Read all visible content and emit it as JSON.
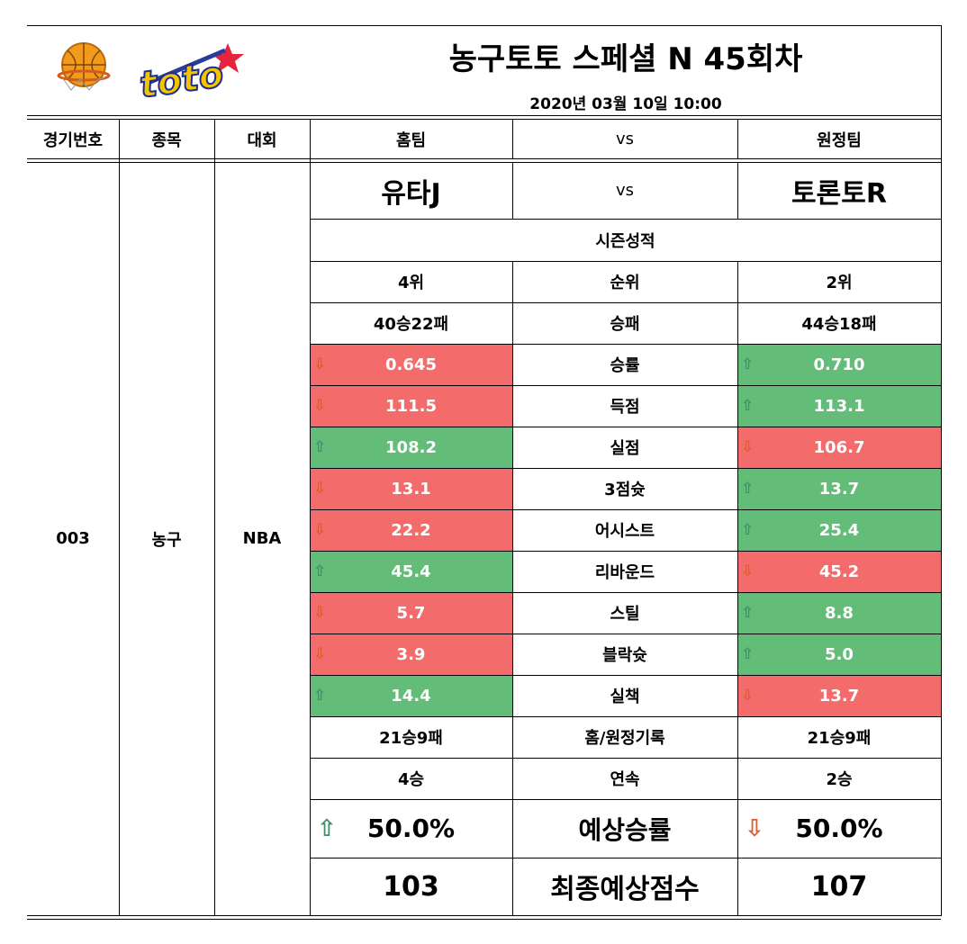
{
  "header": {
    "title": "농구토토 스페셜 N 45회차",
    "datetime": "2020년 03월 10일 10:00",
    "logo_text": "toto"
  },
  "columns": {
    "game_no": "경기번호",
    "sport": "종목",
    "league": "대회",
    "home": "홈팀",
    "vs": "vs",
    "away": "원정팀"
  },
  "game": {
    "number": "003",
    "sport": "농구",
    "league": "NBA",
    "home_team": "유타J",
    "vs": "vs",
    "away_team": "토론토R"
  },
  "season_label": "시즌성적",
  "rows_plain": [
    {
      "home": "4위",
      "label": "순위",
      "away": "2위"
    },
    {
      "home": "40승22패",
      "label": "승패",
      "away": "44승18패"
    }
  ],
  "stats": [
    {
      "home": "0.645",
      "home_dir": "down",
      "label": "승률",
      "away": "0.710",
      "away_dir": "up"
    },
    {
      "home": "111.5",
      "home_dir": "down",
      "label": "득점",
      "away": "113.1",
      "away_dir": "up"
    },
    {
      "home": "108.2",
      "home_dir": "up",
      "label": "실점",
      "away": "106.7",
      "away_dir": "down"
    },
    {
      "home": "13.1",
      "home_dir": "down",
      "label": "3점슛",
      "away": "13.7",
      "away_dir": "up"
    },
    {
      "home": "22.2",
      "home_dir": "down",
      "label": "어시스트",
      "away": "25.4",
      "away_dir": "up"
    },
    {
      "home": "45.4",
      "home_dir": "up",
      "label": "리바운드",
      "away": "45.2",
      "away_dir": "down"
    },
    {
      "home": "5.7",
      "home_dir": "down",
      "label": "스틸",
      "away": "8.8",
      "away_dir": "up"
    },
    {
      "home": "3.9",
      "home_dir": "down",
      "label": "블락슛",
      "away": "5.0",
      "away_dir": "up"
    },
    {
      "home": "14.4",
      "home_dir": "up",
      "label": "실책",
      "away": "13.7",
      "away_dir": "down"
    }
  ],
  "rows_plain2": [
    {
      "home": "21승9패",
      "label": "홈/원정기록",
      "away": "21승9패"
    },
    {
      "home": "4승",
      "label": "연속",
      "away": "2승"
    }
  ],
  "prediction": {
    "home": "50.0%",
    "home_dir": "up",
    "label": "예상승률",
    "away": "50.0%",
    "away_dir": "down"
  },
  "final_score": {
    "home": "103",
    "label": "최종예상점수",
    "away": "107"
  },
  "colors": {
    "down_bg": "#f36b6b",
    "up_bg": "#63bd78",
    "up_arrow": "#3e8f6e",
    "down_arrow": "#e05a2c"
  }
}
